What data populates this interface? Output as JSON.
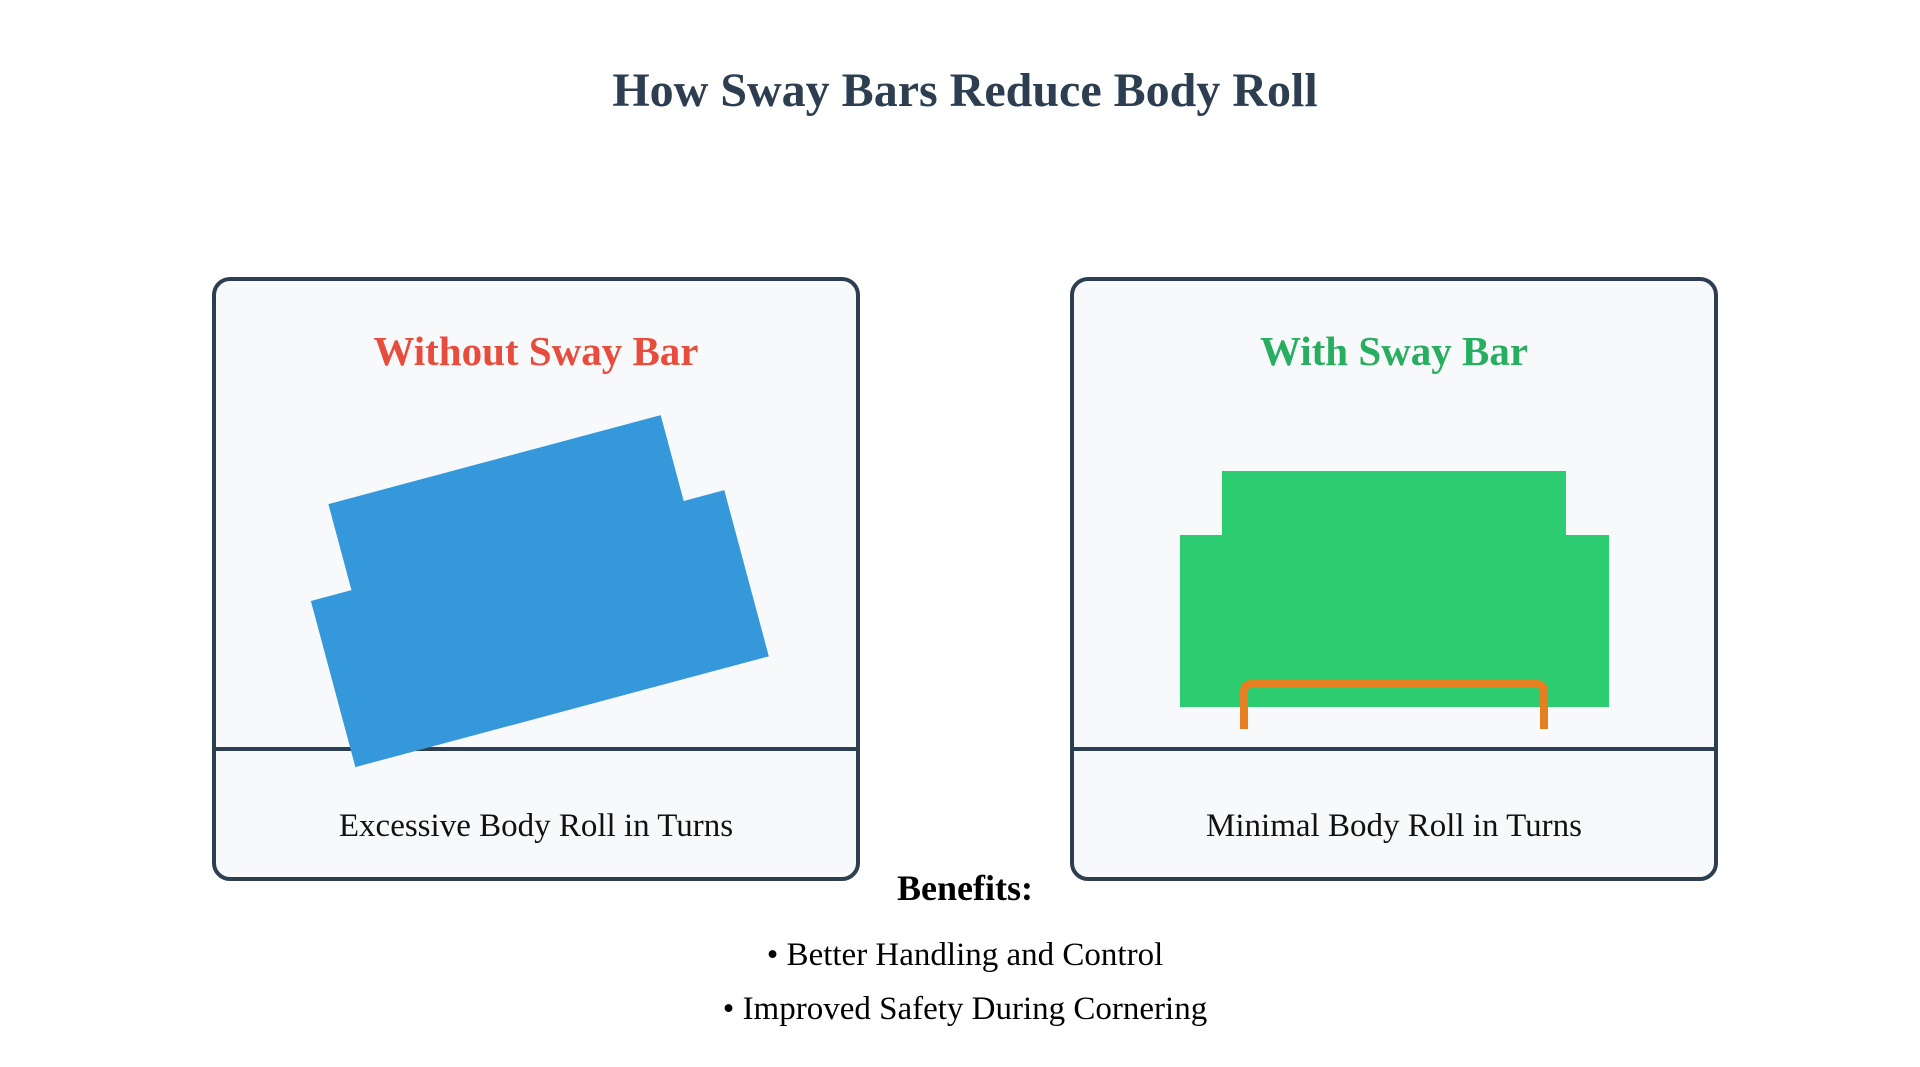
{
  "title": "How Sway Bars Reduce Body Roll",
  "colors": {
    "title": "#2c3e50",
    "panel_border": "#2c3e50",
    "panel_fill": "#f7f9fa",
    "without_accent": "#e74c3c",
    "with_accent": "#27ae60",
    "car_without": "#3498db",
    "car_with": "#2ecc71",
    "sway_bar": "#e67e22"
  },
  "panels": {
    "without": {
      "title": "Without Sway Bar",
      "caption": "Excessive Body Roll in Turns",
      "car_icon": "car-body-tilted-icon"
    },
    "with": {
      "title": "With Sway Bar",
      "caption": "Minimal Body Roll in Turns",
      "car_icon": "car-body-level-icon",
      "bar_icon": "sway-bar-icon"
    }
  },
  "benefits": {
    "heading": "Benefits:",
    "items": [
      "• Better Handling and Control",
      "• Improved Safety During Cornering"
    ]
  }
}
